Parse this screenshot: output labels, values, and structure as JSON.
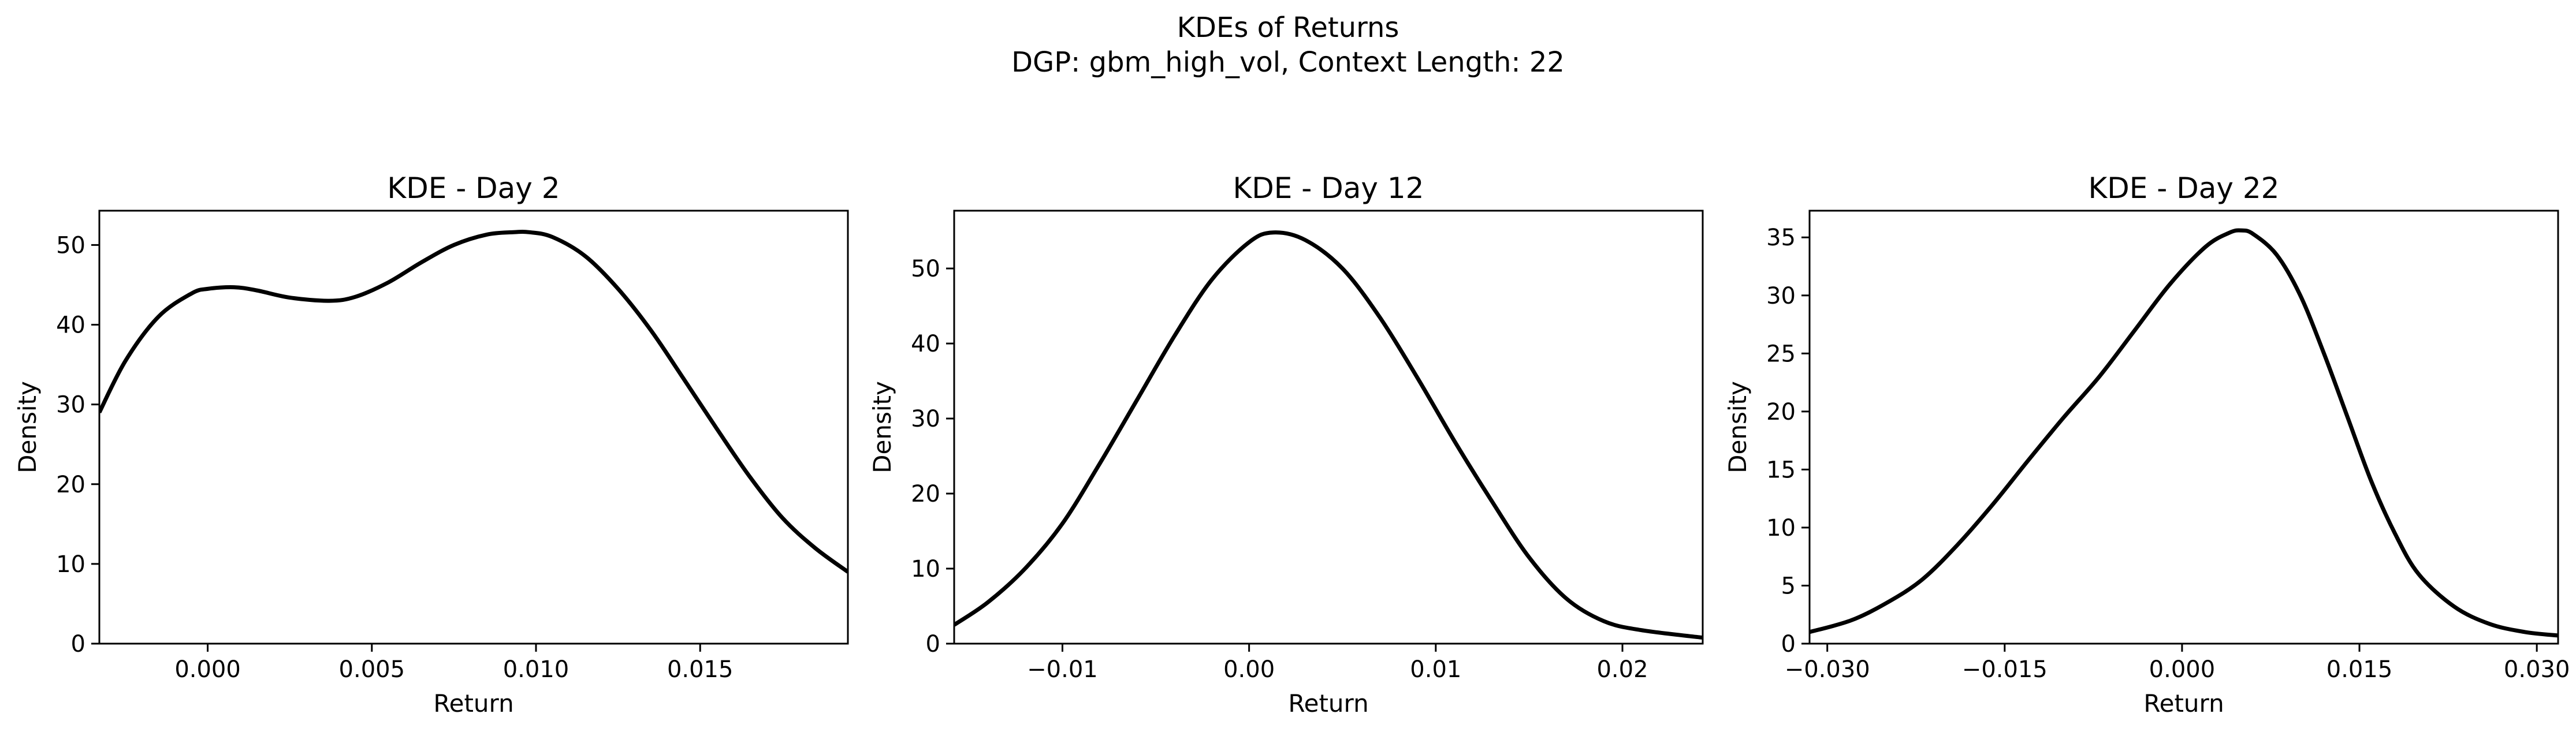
{
  "figure": {
    "title": "KDEs of Returns",
    "subtitle": "DGP: gbm_high_vol, Context Length: 22"
  },
  "chart_data": [
    {
      "type": "line",
      "title": "KDE - Day 2",
      "xlabel": "Return",
      "ylabel": "Density",
      "xlim": [
        -0.0033,
        0.0195
      ],
      "ylim": [
        0,
        54.3
      ],
      "xticks": [
        0.0,
        0.005,
        0.01,
        0.015
      ],
      "xtick_labels": [
        "0.000",
        "0.005",
        "0.010",
        "0.015"
      ],
      "yticks": [
        0,
        10,
        20,
        30,
        40,
        50
      ],
      "ytick_labels": [
        "0",
        "10",
        "20",
        "30",
        "40",
        "50"
      ],
      "grid": false,
      "color": "#000000",
      "x": [
        -0.0033,
        -0.0025,
        -0.0015,
        -0.0005,
        0.0,
        0.0008,
        0.0015,
        0.0025,
        0.0037,
        0.0045,
        0.0055,
        0.0065,
        0.0075,
        0.0085,
        0.0093,
        0.0098,
        0.0105,
        0.0115,
        0.0125,
        0.0135,
        0.0145,
        0.0155,
        0.0165,
        0.0175,
        0.0185,
        0.0195
      ],
      "y": [
        29.0,
        35.5,
        41.0,
        43.9,
        44.5,
        44.7,
        44.3,
        43.4,
        43.0,
        43.5,
        45.3,
        47.8,
        50.0,
        51.3,
        51.6,
        51.6,
        51.0,
        48.6,
        44.5,
        39.3,
        33.2,
        27.0,
        21.0,
        15.8,
        12.0,
        9.0
      ]
    },
    {
      "type": "line",
      "title": "KDE - Day 12",
      "xlabel": "Return",
      "ylabel": "Density",
      "xlim": [
        -0.0158,
        0.0243
      ],
      "ylim": [
        0,
        57.7
      ],
      "xticks": [
        -0.01,
        0.0,
        0.01,
        0.02
      ],
      "xtick_labels": [
        "−0.01",
        "0.00",
        "0.01",
        "0.02"
      ],
      "yticks": [
        0,
        10,
        20,
        30,
        40,
        50
      ],
      "ytick_labels": [
        "0",
        "10",
        "20",
        "30",
        "40",
        "50"
      ],
      "grid": false,
      "color": "#000000",
      "x": [
        -0.0158,
        -0.014,
        -0.012,
        -0.01,
        -0.008,
        -0.006,
        -0.004,
        -0.002,
        0.0,
        0.0013,
        0.003,
        0.005,
        0.007,
        0.009,
        0.011,
        0.013,
        0.015,
        0.017,
        0.019,
        0.021,
        0.0243
      ],
      "y": [
        2.5,
        5.5,
        10.0,
        16.0,
        24.0,
        32.5,
        41.0,
        48.5,
        53.5,
        54.8,
        53.8,
        50.0,
        43.5,
        35.5,
        27.0,
        19.0,
        11.5,
        6.0,
        3.0,
        1.8,
        0.8
      ]
    },
    {
      "type": "line",
      "title": "KDE - Day 22",
      "xlabel": "Return",
      "ylabel": "Density",
      "xlim": [
        -0.0315,
        0.0318
      ],
      "ylim": [
        0,
        37.3
      ],
      "xticks": [
        -0.03,
        -0.015,
        0.0,
        0.015,
        0.03
      ],
      "xtick_labels": [
        "−0.030",
        "−0.015",
        "0.000",
        "0.015",
        "0.030"
      ],
      "yticks": [
        0,
        5,
        10,
        15,
        20,
        25,
        30,
        35
      ],
      "ytick_labels": [
        "0",
        "5",
        "10",
        "15",
        "20",
        "25",
        "30",
        "35"
      ],
      "grid": false,
      "color": "#000000",
      "x": [
        -0.0315,
        -0.028,
        -0.025,
        -0.022,
        -0.019,
        -0.016,
        -0.013,
        -0.01,
        -0.007,
        -0.004,
        -0.001,
        0.002,
        0.004,
        0.005,
        0.006,
        0.008,
        0.01,
        0.012,
        0.014,
        0.016,
        0.018,
        0.02,
        0.023,
        0.026,
        0.029,
        0.0318
      ],
      "y": [
        1.0,
        2.0,
        3.5,
        5.5,
        8.5,
        12.0,
        15.8,
        19.5,
        23.0,
        27.0,
        31.0,
        34.2,
        35.4,
        35.6,
        35.3,
        33.5,
        30.0,
        25.0,
        19.5,
        14.0,
        9.5,
        6.0,
        3.2,
        1.7,
        1.0,
        0.7
      ]
    }
  ]
}
